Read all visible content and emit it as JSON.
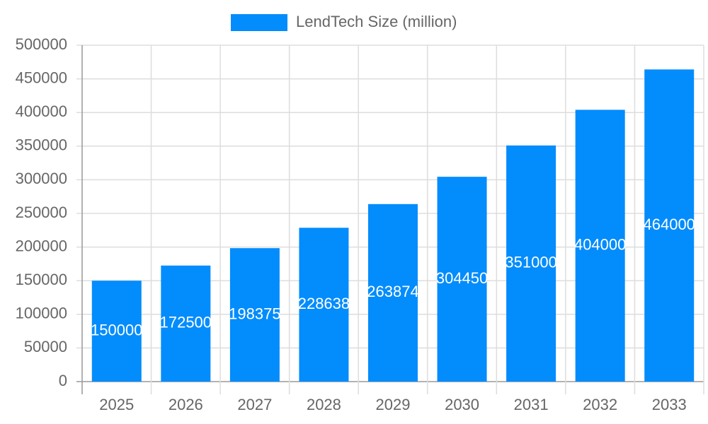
{
  "chart_data": {
    "type": "bar",
    "categories": [
      "2025",
      "2026",
      "2027",
      "2028",
      "2029",
      "2030",
      "2031",
      "2032",
      "2033"
    ],
    "series": [
      {
        "name": "LendTech Size (million)",
        "color": "#038cfc",
        "values": [
          150000,
          172500,
          198375,
          228638,
          263874,
          304450,
          351000,
          404000,
          464000
        ]
      }
    ],
    "ylim": [
      0,
      500000
    ],
    "yticks": [
      0,
      50000,
      100000,
      150000,
      200000,
      250000,
      300000,
      350000,
      400000,
      450000,
      500000
    ],
    "grid": true,
    "legend": "top",
    "data_labels": true
  }
}
